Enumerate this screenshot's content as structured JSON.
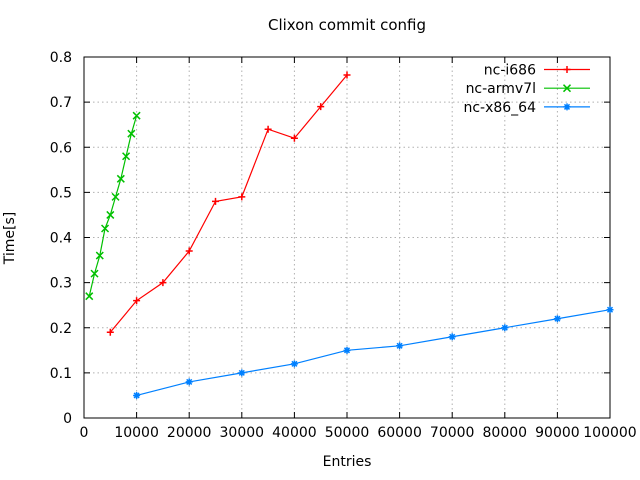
{
  "chart_data": {
    "type": "line",
    "title": "Clixon commit config",
    "xlabel": "Entries",
    "ylabel": "Time[s]",
    "xlim": [
      0,
      100000
    ],
    "ylim": [
      0,
      0.8
    ],
    "grid": true,
    "legend_position": "top-right-inside",
    "xticks": [
      {
        "v": 0,
        "label": "0"
      },
      {
        "v": 10000,
        "label": "10000"
      },
      {
        "v": 20000,
        "label": "20000"
      },
      {
        "v": 30000,
        "label": "30000"
      },
      {
        "v": 40000,
        "label": "40000"
      },
      {
        "v": 50000,
        "label": "50000"
      },
      {
        "v": 60000,
        "label": "60000"
      },
      {
        "v": 70000,
        "label": "70000"
      },
      {
        "v": 80000,
        "label": "80000"
      },
      {
        "v": 90000,
        "label": "90000"
      },
      {
        "v": 100000,
        "label": "100000"
      }
    ],
    "yticks": [
      {
        "v": 0,
        "label": "0"
      },
      {
        "v": 0.1,
        "label": "0.1"
      },
      {
        "v": 0.2,
        "label": "0.2"
      },
      {
        "v": 0.3,
        "label": "0.3"
      },
      {
        "v": 0.4,
        "label": "0.4"
      },
      {
        "v": 0.5,
        "label": "0.5"
      },
      {
        "v": 0.6,
        "label": "0.6"
      },
      {
        "v": 0.7,
        "label": "0.7"
      },
      {
        "v": 0.8,
        "label": "0.8"
      }
    ],
    "series": [
      {
        "name": "nc-i686",
        "color": "#ff0000",
        "marker": "plus",
        "x": [
          5000,
          10000,
          15000,
          20000,
          25000,
          30000,
          35000,
          40000,
          45000,
          50000
        ],
        "y": [
          0.19,
          0.26,
          0.3,
          0.37,
          0.48,
          0.49,
          0.64,
          0.62,
          0.69,
          0.76
        ]
      },
      {
        "name": "nc-armv7l",
        "color": "#00c000",
        "marker": "cross",
        "x": [
          1000,
          2000,
          3000,
          4000,
          5000,
          6000,
          7000,
          8000,
          9000,
          10000
        ],
        "y": [
          0.27,
          0.32,
          0.36,
          0.42,
          0.45,
          0.49,
          0.53,
          0.58,
          0.63,
          0.67
        ]
      },
      {
        "name": "nc-x86_64",
        "color": "#0080ff",
        "marker": "star",
        "x": [
          10000,
          20000,
          30000,
          40000,
          50000,
          60000,
          70000,
          80000,
          90000,
          100000
        ],
        "y": [
          0.05,
          0.08,
          0.1,
          0.12,
          0.15,
          0.16,
          0.18,
          0.2,
          0.22,
          0.24
        ]
      }
    ]
  },
  "colors": {
    "background": "#ffffff",
    "axis": "#000000",
    "grid": "#b0b0b0"
  }
}
